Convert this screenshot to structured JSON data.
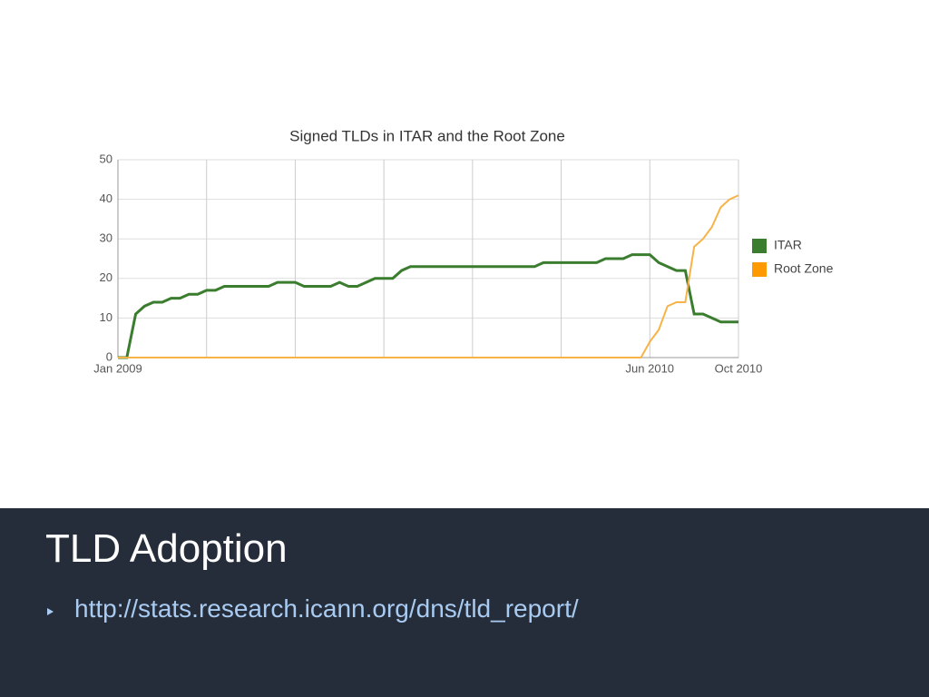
{
  "chart_data": {
    "type": "line",
    "title": "Signed TLDs in ITAR and the Root Zone",
    "categories": [
      "Jan 2009",
      null,
      null,
      null,
      null,
      null,
      null,
      null,
      null,
      null,
      null,
      null,
      null,
      null,
      null,
      null,
      null,
      null,
      null,
      null,
      null,
      null,
      null,
      null,
      null,
      null,
      null,
      null,
      null,
      null,
      null,
      null,
      null,
      null,
      null,
      null,
      null,
      null,
      null,
      null,
      null,
      null,
      null,
      null,
      null,
      null,
      null,
      null,
      null,
      null,
      null,
      null,
      null,
      null,
      null,
      null,
      null,
      null,
      null,
      null,
      "Jun 2010",
      null,
      null,
      null,
      null,
      null,
      null,
      null,
      null,
      null,
      "Oct 2010"
    ],
    "series": [
      {
        "name": "ITAR",
        "color": "#3b7d2e",
        "values": [
          0,
          0,
          11,
          13,
          14,
          14,
          15,
          15,
          16,
          16,
          17,
          17,
          18,
          18,
          18,
          18,
          18,
          18,
          19,
          19,
          19,
          18,
          18,
          18,
          18,
          19,
          18,
          18,
          19,
          20,
          20,
          20,
          22,
          23,
          23,
          23,
          23,
          23,
          23,
          23,
          23,
          23,
          23,
          23,
          23,
          23,
          23,
          23,
          24,
          24,
          24,
          24,
          24,
          24,
          24,
          25,
          25,
          25,
          26,
          26,
          26,
          24,
          23,
          22,
          22,
          11,
          11,
          10,
          9,
          9,
          9
        ]
      },
      {
        "name": "Root Zone",
        "color": "#f7b347",
        "values": [
          0,
          0,
          0,
          0,
          0,
          0,
          0,
          0,
          0,
          0,
          0,
          0,
          0,
          0,
          0,
          0,
          0,
          0,
          0,
          0,
          0,
          0,
          0,
          0,
          0,
          0,
          0,
          0,
          0,
          0,
          0,
          0,
          0,
          0,
          0,
          0,
          0,
          0,
          0,
          0,
          0,
          0,
          0,
          0,
          0,
          0,
          0,
          0,
          0,
          0,
          0,
          0,
          0,
          0,
          0,
          0,
          0,
          0,
          0,
          0,
          4,
          7,
          13,
          14,
          14,
          28,
          30,
          33,
          38,
          40,
          41
        ]
      }
    ],
    "ylim": [
      0,
      50
    ],
    "yticks": [
      0,
      10,
      20,
      30,
      40,
      50
    ],
    "grid": true,
    "legend": "right"
  },
  "slide": {
    "title": "TLD Adoption",
    "bullets": [
      "http://stats.research.icann.org/dns/tld_report/"
    ]
  }
}
